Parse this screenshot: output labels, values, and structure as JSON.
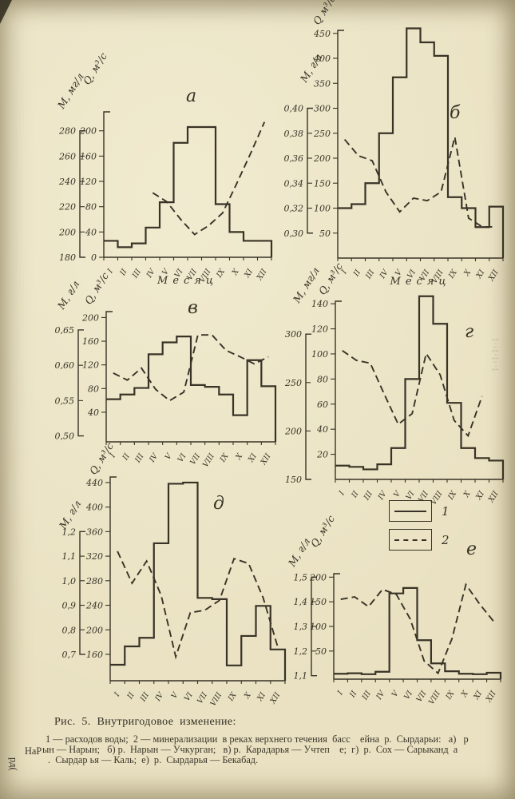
{
  "paper_color": "#e9e1c1",
  "ink_color": "#393327",
  "months": [
    "I",
    "II",
    "III",
    "IV",
    "V",
    "VI",
    "VII",
    "VIII",
    "IX",
    "X",
    "XI",
    "XII"
  ],
  "chart_data": [
    {
      "key": "a",
      "title": "а",
      "type": "line",
      "m_axis": {
        "label": "М, мг/л",
        "ticks": [
          280,
          260,
          240,
          220,
          200,
          180
        ],
        "range": [
          180,
          295
        ]
      },
      "q_axis": {
        "label": "Q, м³/с",
        "ticks": [
          200,
          160,
          120,
          80,
          40,
          0
        ],
        "range": [
          0,
          230
        ]
      },
      "x_label": "Месяц",
      "series": [
        {
          "name": "1",
          "style": "step-solid",
          "axis": "q",
          "values": [
            26,
            16,
            22,
            47,
            87,
            181,
            206,
            206,
            84,
            40,
            26,
            26
          ]
        },
        {
          "name": "2",
          "style": "dashed",
          "axis": "m",
          "values": [
            null,
            null,
            null,
            231,
            224,
            210,
            198,
            205,
            215,
            238,
            262,
            287
          ]
        }
      ]
    },
    {
      "key": "b",
      "title": "б",
      "type": "line",
      "m_axis": {
        "label": "М, г/л",
        "ticks": [
          0.4,
          0.38,
          0.36,
          0.34,
          0.32,
          0.3
        ],
        "tick_labels": [
          "0,40",
          "0,38",
          "0,36",
          "0,34",
          "0,32",
          "0,30"
        ],
        "range": [
          0.28,
          0.4624
        ]
      },
      "q_axis": {
        "label": "Q м³/с",
        "ticks": [
          450,
          400,
          350,
          300,
          250,
          200,
          150,
          100,
          50
        ],
        "range": [
          0,
          456
        ]
      },
      "x_label": "Месяц",
      "series": [
        {
          "name": "1",
          "style": "step-solid",
          "axis": "q",
          "values": [
            100,
            108,
            150,
            250,
            362,
            460,
            432,
            405,
            122,
            100,
            62,
            103
          ]
        },
        {
          "name": "2",
          "style": "dashed",
          "axis": "m",
          "values": [
            0.375,
            0.362,
            0.358,
            0.333,
            0.317,
            0.328,
            0.326,
            0.333,
            0.377,
            0.312,
            0.305,
            0.305
          ]
        }
      ]
    },
    {
      "key": "v",
      "title": "в",
      "type": "line",
      "m_axis": {
        "label": "М, г/л",
        "ticks": [
          0.65,
          0.6,
          0.55,
          0.5
        ],
        "tick_labels": [
          "0,65",
          "0,60",
          "0,55",
          "0,50"
        ],
        "range": [
          0.4916,
          0.676
        ]
      },
      "q_axis": {
        "label": "Q, м³/с",
        "ticks": [
          200,
          160,
          120,
          80,
          40
        ],
        "range": [
          -10,
          210
        ]
      },
      "x_label": "",
      "series": [
        {
          "name": "1",
          "style": "step-solid",
          "axis": "q",
          "values": [
            62,
            70,
            81,
            138,
            158,
            168,
            86,
            83,
            70,
            35,
            128,
            84
          ]
        },
        {
          "name": "2",
          "style": "dashed",
          "axis": "m",
          "values": [
            0.589,
            0.579,
            0.596,
            0.566,
            0.55,
            0.562,
            0.643,
            0.643,
            0.621,
            0.612,
            0.602,
            0.612
          ]
        }
      ]
    },
    {
      "key": "g",
      "title": "г",
      "type": "line",
      "m_axis": {
        "label": "М, мг/л",
        "ticks": [
          300,
          250,
          200,
          150
        ],
        "range": [
          150,
          334
        ]
      },
      "q_axis": {
        "label": "Q, м³/с",
        "ticks": [
          140,
          120,
          100,
          80,
          60,
          40,
          20
        ],
        "range": [
          0,
          142
        ]
      },
      "x_label": "",
      "series": [
        {
          "name": "1",
          "style": "step-solid",
          "axis": "q",
          "values": [
            11,
            10,
            8,
            12,
            25,
            80,
            146,
            124,
            61,
            25,
            17,
            15
          ]
        },
        {
          "name": "2",
          "style": "dashed",
          "axis": "m",
          "values": [
            283,
            273,
            270,
            238,
            207,
            218,
            280,
            258,
            211,
            195,
            236,
            null
          ]
        }
      ]
    },
    {
      "key": "d",
      "title": "д",
      "type": "line",
      "m_axis": {
        "label": "М, г/л",
        "ticks": [
          1.2,
          1.1,
          1.0,
          0.9,
          0.8,
          0.7
        ],
        "tick_labels": [
          "1,2",
          "1,1",
          "1,0",
          "0,9",
          "0,8",
          "0,7"
        ],
        "range": [
          0.5925,
          1.4225
        ]
      },
      "q_axis": {
        "label": "Q, м³/с",
        "ticks": [
          440,
          400,
          360,
          320,
          280,
          240,
          200,
          160
        ],
        "range": [
          117,
          449
        ]
      },
      "x_label": "",
      "series": [
        {
          "name": "1",
          "style": "step-solid",
          "axis": "q",
          "values": [
            143,
            173,
            187,
            341,
            438,
            440,
            252,
            250,
            142,
            190,
            239,
            168
          ]
        },
        {
          "name": "2",
          "style": "dashed",
          "axis": "m",
          "values": [
            1.12,
            0.99,
            1.08,
            0.94,
            0.69,
            0.87,
            0.88,
            0.92,
            1.09,
            1.07,
            0.93,
            0.73
          ]
        }
      ]
    },
    {
      "key": "e",
      "title": "е",
      "type": "line",
      "m_axis": {
        "label": "М, г/л",
        "ticks": [
          1.5,
          1.4,
          1.3,
          1.2,
          1.1
        ],
        "tick_labels": [
          "1,5",
          "1,4",
          "1,3",
          "1,2",
          "1,1"
        ],
        "range": [
          1.086,
          1.514
        ]
      },
      "q_axis": {
        "label": "Q, м³/с",
        "ticks": [
          200,
          150,
          100,
          50
        ],
        "range": [
          -7,
          207
        ]
      },
      "x_label": "",
      "series": [
        {
          "name": "1",
          "style": "step-solid",
          "axis": "q",
          "values": [
            4,
            5,
            3,
            8,
            167,
            178,
            72,
            25,
            9,
            4,
            3,
            6
          ]
        },
        {
          "name": "2",
          "style": "dashed",
          "axis": "m",
          "values": [
            1.41,
            1.42,
            1.38,
            1.45,
            1.43,
            1.33,
            1.16,
            1.11,
            1.25,
            1.47,
            1.39,
            1.32
          ]
        }
      ]
    }
  ],
  "legend": {
    "items": [
      {
        "label": "1",
        "line": "solid"
      },
      {
        "label": "2",
        "line": "dashed"
      }
    ]
  },
  "caption": {
    "heading": "Рис.  5.  Внутригодовое  изменение:",
    "line2": "1 — расходов воды;  2 — минерализации  в реках верхнего течения  басс    ейна  р.  Сырдарьи:   а)   р",
    "line3": "ын — Нарын;   б) р.  Нарын — Учкурган;   в) р.  Карадарья — Учтеп    е;  г)  р.  Сох — Сарыканд  а",
    "line4": ".  Сырдар ья — Каль;  е)  р.  Сырдарья — Бекабад.",
    "margin_fragment": "НаР",
    "margin_rotated": "рд("
  },
  "artifacts": {
    "right_bleed": "¦·:¦·¦:·¦"
  }
}
